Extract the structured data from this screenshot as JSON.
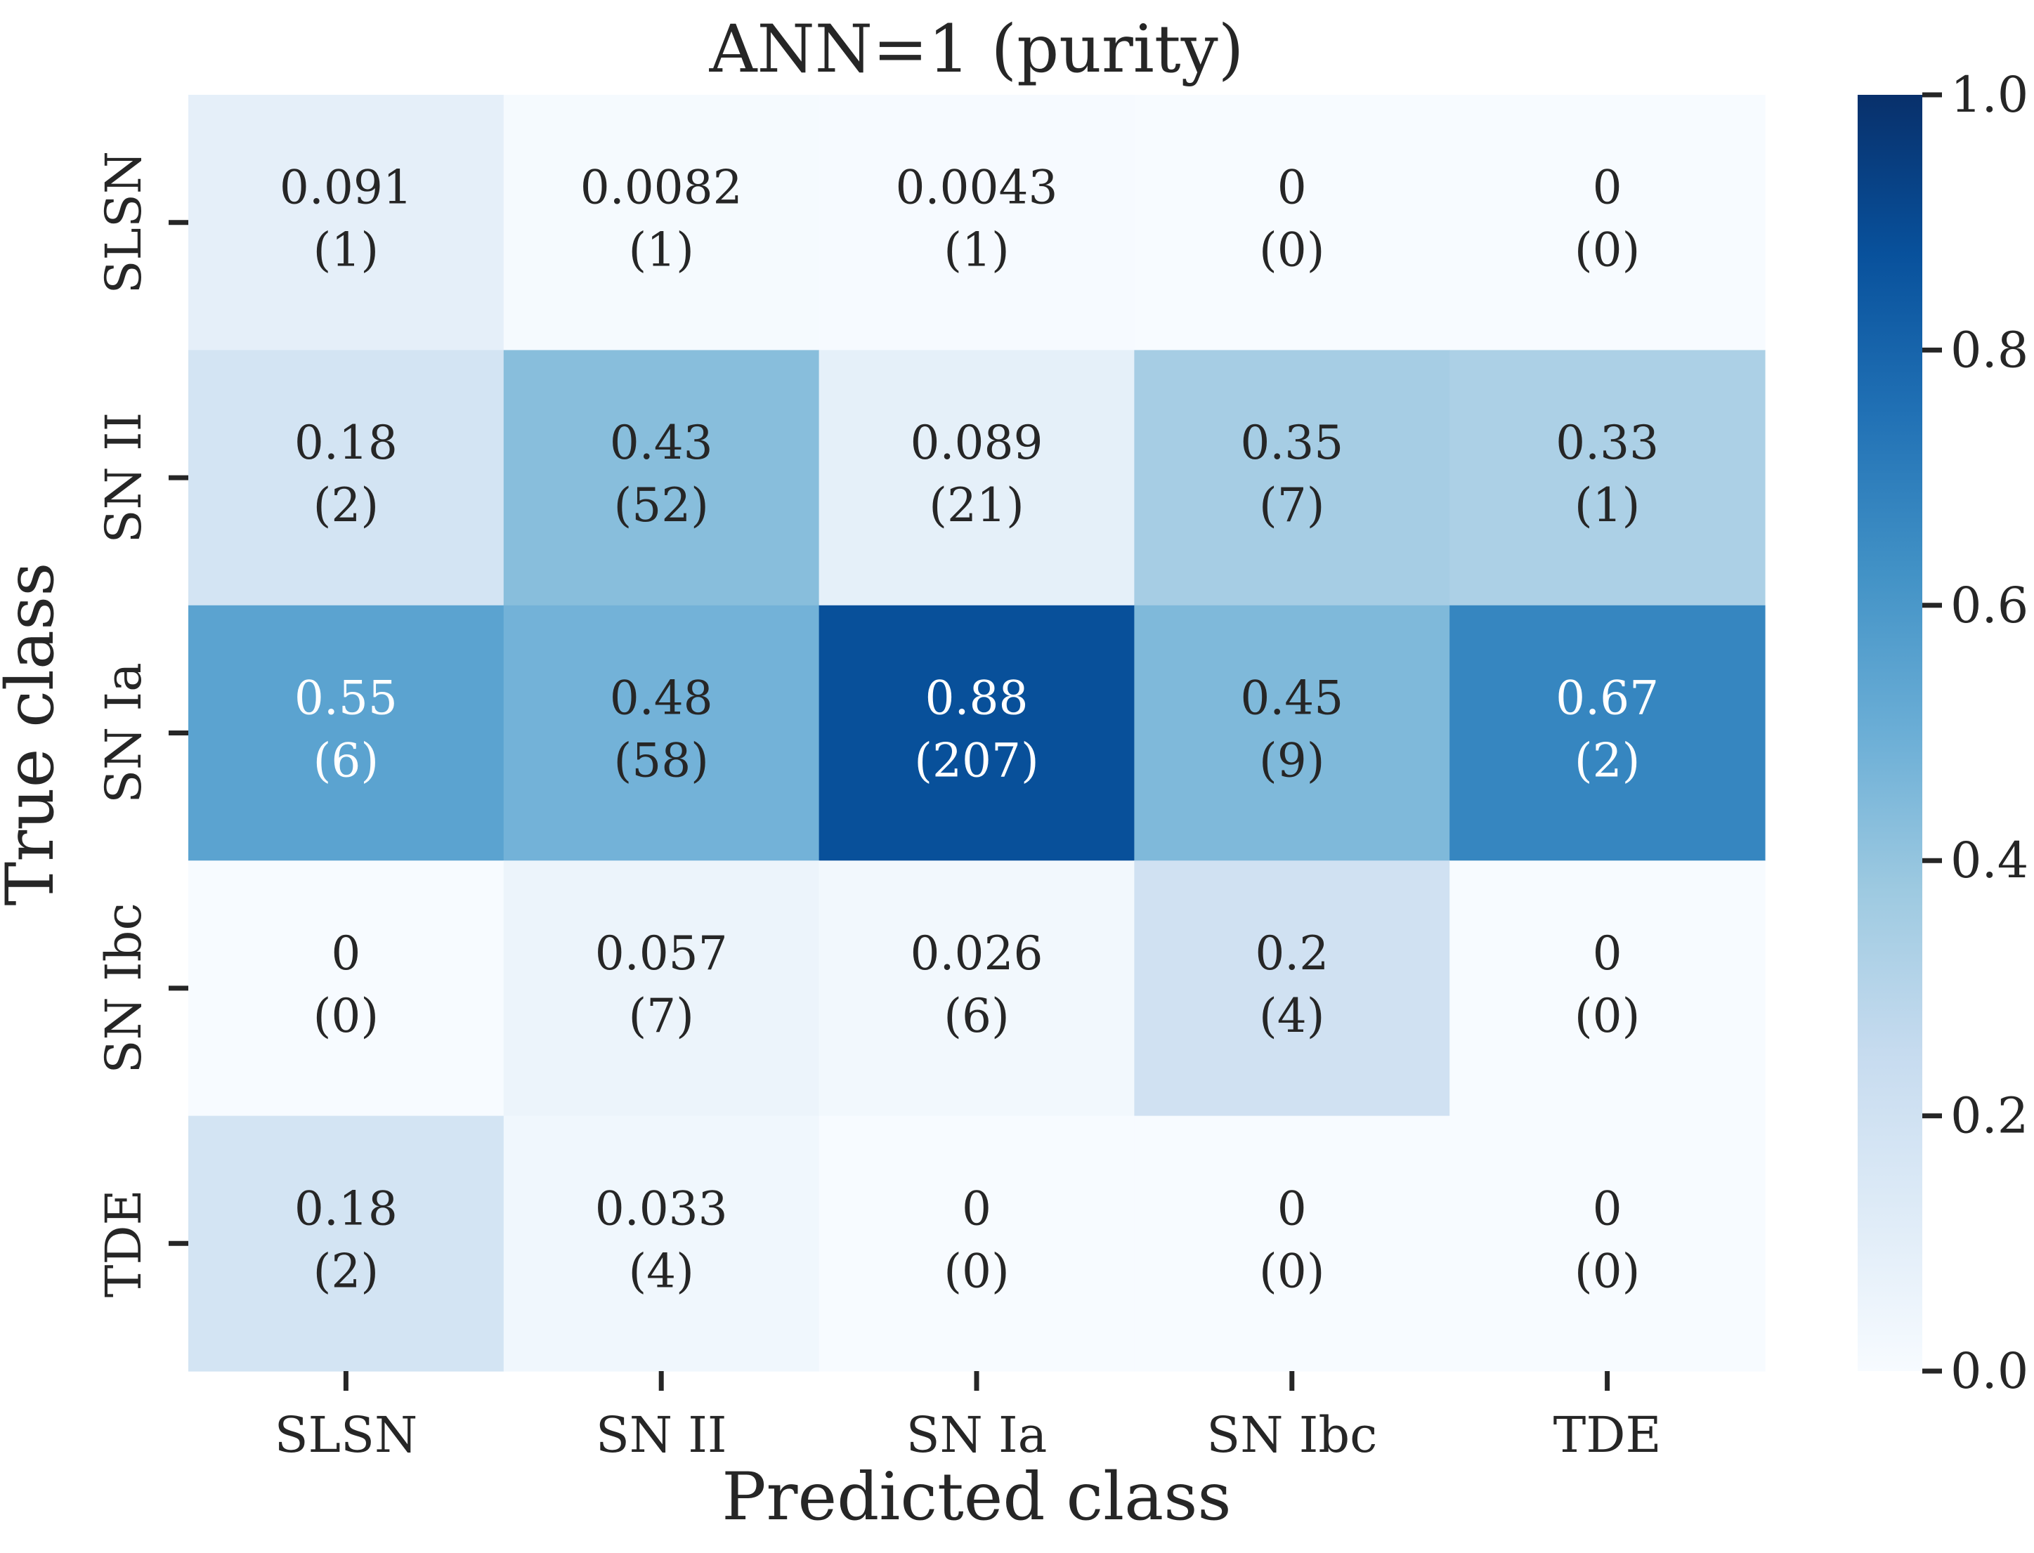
{
  "chart_data": {
    "type": "heatmap",
    "title": "ANN=1 (purity)",
    "xlabel": "Predicted class",
    "ylabel": "True class",
    "x_categories": [
      "SLSN",
      "SN II",
      "SN Ia",
      "SN Ibc",
      "TDE"
    ],
    "y_categories": [
      "SLSN",
      "SN II",
      "SN Ia",
      "SN Ibc",
      "TDE"
    ],
    "values": [
      [
        0.091,
        0.0082,
        0.0043,
        0,
        0
      ],
      [
        0.18,
        0.43,
        0.089,
        0.35,
        0.33
      ],
      [
        0.55,
        0.48,
        0.88,
        0.45,
        0.67
      ],
      [
        0,
        0.057,
        0.026,
        0.2,
        0
      ],
      [
        0.18,
        0.033,
        0,
        0,
        0
      ]
    ],
    "value_labels": [
      [
        "0.091",
        "0.0082",
        "0.0043",
        "0",
        "0"
      ],
      [
        "0.18",
        "0.43",
        "0.089",
        "0.35",
        "0.33"
      ],
      [
        "0.55",
        "0.48",
        "0.88",
        "0.45",
        "0.67"
      ],
      [
        "0",
        "0.057",
        "0.026",
        "0.2",
        "0"
      ],
      [
        "0.18",
        "0.033",
        "0",
        "0",
        "0"
      ]
    ],
    "count_labels": [
      [
        "(1)",
        "(1)",
        "(1)",
        "(0)",
        "(0)"
      ],
      [
        "(2)",
        "(52)",
        "(21)",
        "(7)",
        "(1)"
      ],
      [
        "(6)",
        "(58)",
        "(207)",
        "(9)",
        "(2)"
      ],
      [
        "(0)",
        "(7)",
        "(6)",
        "(4)",
        "(0)"
      ],
      [
        "(2)",
        "(4)",
        "(0)",
        "(0)",
        "(0)"
      ]
    ],
    "colorbar": {
      "vmin": 0.0,
      "vmax": 1.0,
      "ticks": [
        0.0,
        0.2,
        0.4,
        0.6,
        0.8,
        1.0
      ],
      "tick_labels": [
        "0.0",
        "0.2",
        "0.4",
        "0.6",
        "0.8",
        "1.0"
      ],
      "colormap": "Blues",
      "colors": [
        "#f7fbff",
        "#deebf7",
        "#c6dbef",
        "#9ecae1",
        "#6baed6",
        "#4292c6",
        "#2171b5",
        "#08519c",
        "#08306b"
      ]
    },
    "text_color_dark": "#262626",
    "text_color_light": "#ffffff"
  }
}
